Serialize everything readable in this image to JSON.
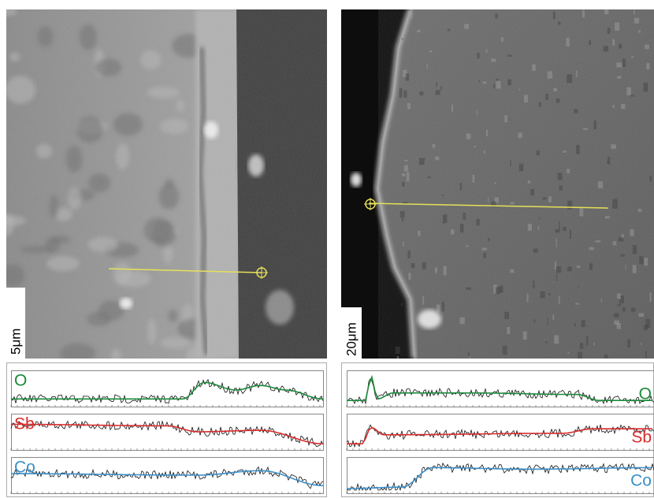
{
  "left_panel": {
    "scale_bar": "5μm",
    "profiles": [
      "O",
      "Sb",
      "Co"
    ]
  },
  "right_panel": {
    "scale_bar": "20μm",
    "profiles": [
      "O",
      "Sb",
      "Co"
    ]
  }
}
